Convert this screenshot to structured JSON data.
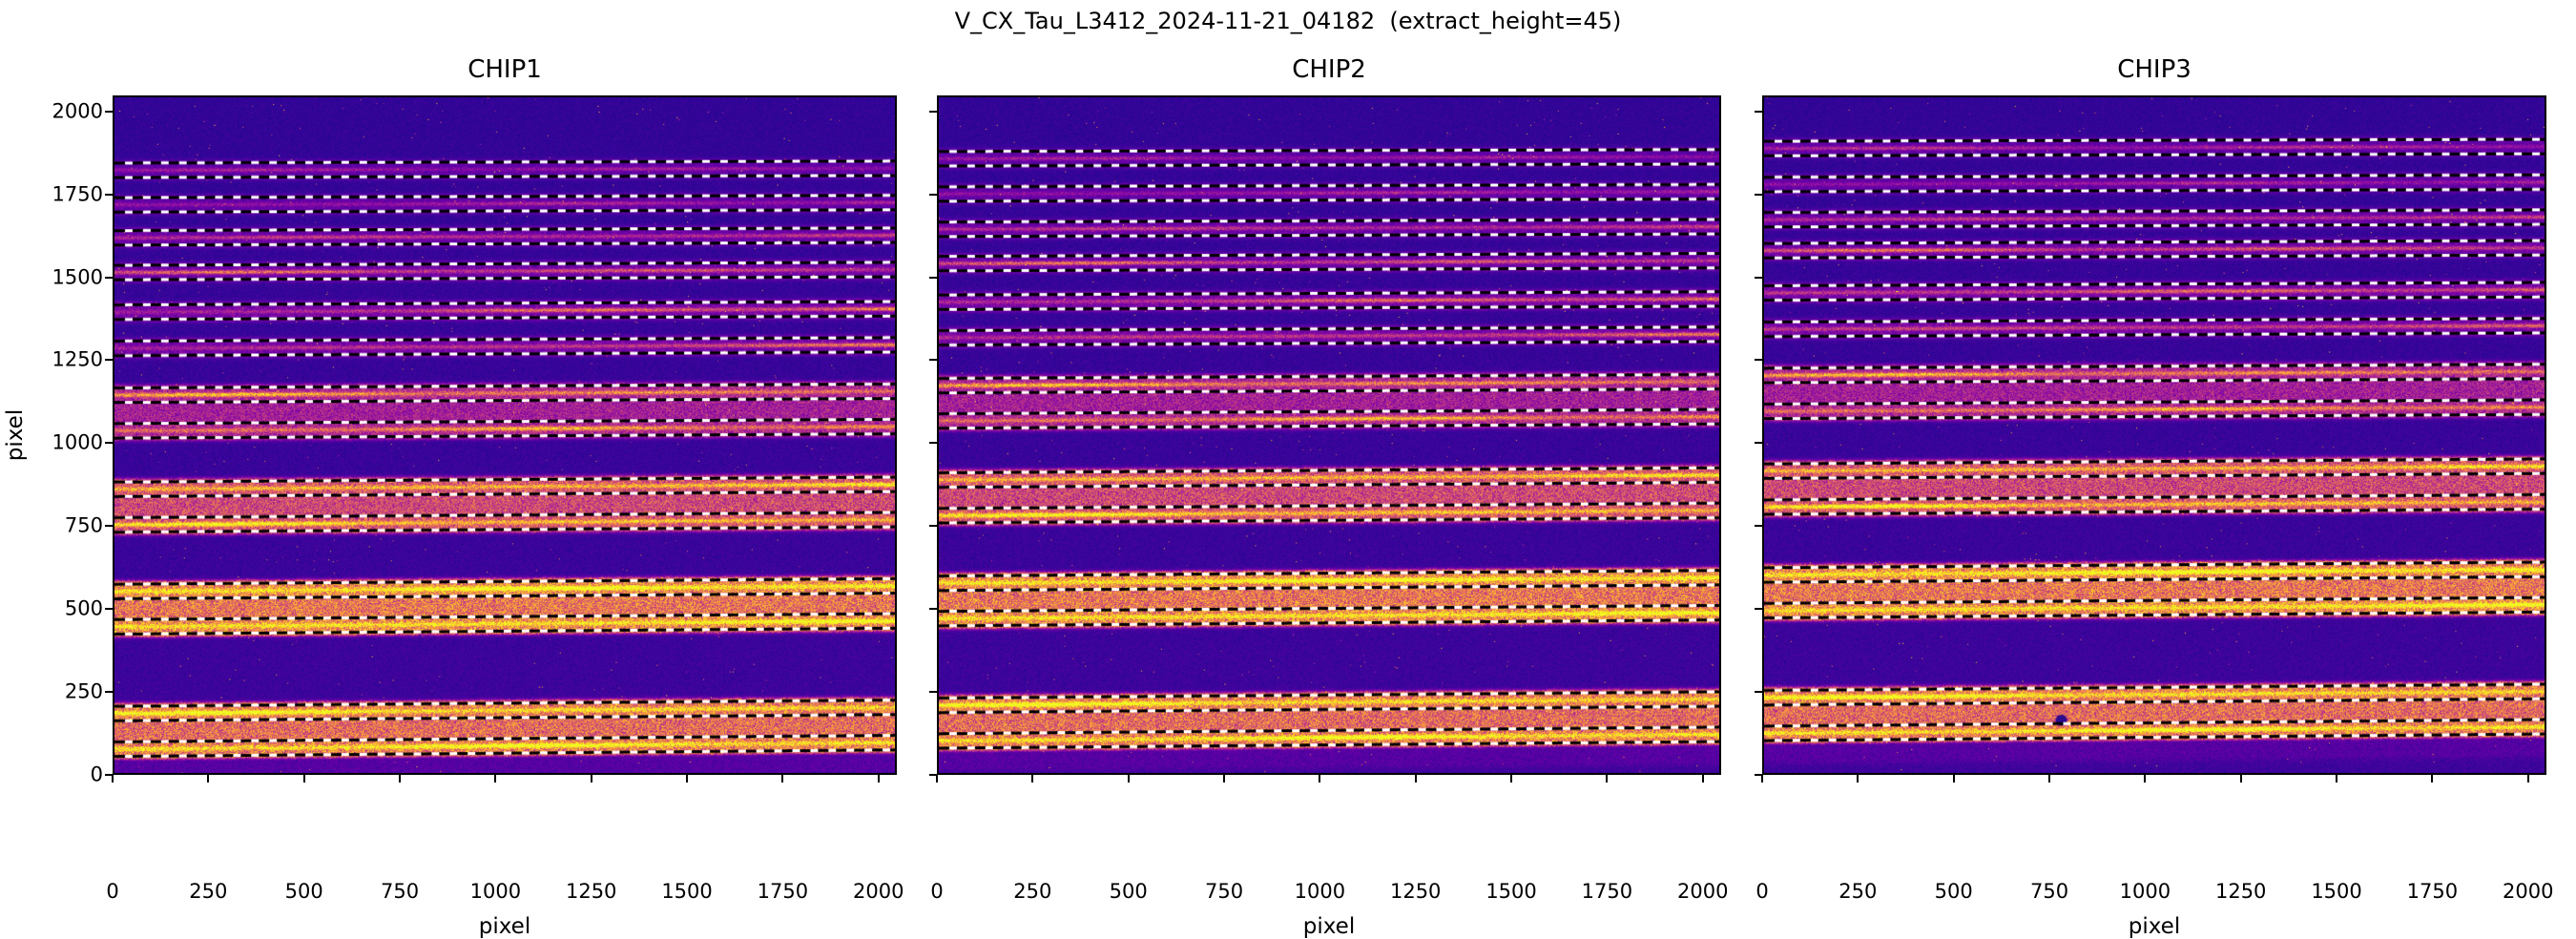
{
  "chart_data": {
    "type": "heatmap",
    "suptitle": "V_CX_Tau_L3412_2024-11-21_04182  (extract_height=45)",
    "xlabel": "pixel",
    "ylabel": "pixel",
    "xlim": [
      0,
      2048
    ],
    "ylim": [
      0,
      2048
    ],
    "xticks": [
      0,
      250,
      500,
      750,
      1000,
      1250,
      1500,
      1750,
      2000
    ],
    "yticks": [
      0,
      250,
      500,
      750,
      1000,
      1250,
      1500,
      1750,
      2000
    ],
    "colormap": "plasma",
    "extract_height": 45,
    "extraction_half_window": 22,
    "trace_line_style": "alternating black/white dashed lines at order trace ±22 px",
    "merged_order_pairs": [
      [
        6,
        7
      ],
      [
        8,
        9
      ],
      [
        10,
        11
      ],
      [
        12,
        13
      ]
    ],
    "panels": [
      {
        "title": "CHIP1",
        "show_ytick_labels": true,
        "defects": [],
        "orders": [
          {
            "trace": 1827,
            "core": 0.24,
            "window": 0.095,
            "tilt": 6,
            "xg": [
              1,
              1
            ]
          },
          {
            "trace": 1722,
            "core": 0.28,
            "window": 0.105,
            "tilt": 7,
            "xg": [
              1,
              1
            ]
          },
          {
            "trace": 1622,
            "core": 0.44,
            "window": 0.12,
            "tilt": 8,
            "xg": [
              1,
              1
            ]
          },
          {
            "trace": 1517,
            "core": 0.48,
            "window": 0.13,
            "tilt": 9,
            "xg": [
              1,
              1
            ]
          },
          {
            "trace": 1397,
            "core": 0.5,
            "window": 0.15,
            "tilt": 10,
            "xg": [
              0.5,
              1.35
            ]
          },
          {
            "trace": 1287,
            "core": 0.5,
            "window": 0.15,
            "tilt": 11,
            "xg": [
              0.55,
              1.3
            ]
          },
          {
            "trace": 1145,
            "core": 0.54,
            "window": 0.3,
            "tilt": 12,
            "xg": [
              1,
              1
            ]
          },
          {
            "trace": 1037,
            "core": 0.54,
            "window": 0.3,
            "tilt": 13,
            "xg": [
              1,
              1
            ]
          },
          {
            "trace": 860,
            "core": 0.63,
            "window": 0.46,
            "tilt": 15,
            "xg": [
              1,
              1
            ]
          },
          {
            "trace": 752,
            "core": 0.63,
            "window": 0.46,
            "tilt": 16,
            "xg": [
              1,
              1
            ]
          },
          {
            "trace": 550,
            "core": 0.72,
            "window": 0.61,
            "tilt": 17,
            "xg": [
              1,
              1
            ]
          },
          {
            "trace": 443,
            "core": 0.72,
            "window": 0.61,
            "tilt": 18,
            "xg": [
              1,
              1
            ]
          },
          {
            "trace": 180,
            "core": 0.69,
            "window": 0.57,
            "tilt": 19,
            "xg": [
              1,
              1
            ]
          },
          {
            "trace": 72,
            "core": 0.69,
            "window": 0.57,
            "tilt": 20,
            "xg": [
              1,
              1
            ]
          }
        ]
      },
      {
        "title": "CHIP2",
        "show_ytick_labels": false,
        "defects": [],
        "orders": [
          {
            "trace": 1862,
            "core": 0.24,
            "window": 0.095,
            "tilt": 6,
            "xg": [
              1,
              1
            ]
          },
          {
            "trace": 1755,
            "core": 0.28,
            "window": 0.105,
            "tilt": 7,
            "xg": [
              1,
              1
            ]
          },
          {
            "trace": 1648,
            "core": 0.44,
            "window": 0.12,
            "tilt": 8,
            "xg": [
              1,
              1
            ]
          },
          {
            "trace": 1544,
            "core": 0.48,
            "window": 0.13,
            "tilt": 9,
            "xg": [
              1,
              1
            ]
          },
          {
            "trace": 1427,
            "core": 0.5,
            "window": 0.15,
            "tilt": 10,
            "xg": [
              0.7,
              1.2
            ]
          },
          {
            "trace": 1319,
            "core": 0.5,
            "window": 0.15,
            "tilt": 11,
            "xg": [
              0.7,
              1.2
            ]
          },
          {
            "trace": 1174,
            "core": 0.54,
            "window": 0.3,
            "tilt": 12,
            "xg": [
              1,
              1
            ]
          },
          {
            "trace": 1067,
            "core": 0.54,
            "window": 0.3,
            "tilt": 13,
            "xg": [
              1,
              1
            ]
          },
          {
            "trace": 888,
            "core": 0.63,
            "window": 0.46,
            "tilt": 15,
            "xg": [
              1,
              1
            ]
          },
          {
            "trace": 780,
            "core": 0.63,
            "window": 0.46,
            "tilt": 16,
            "xg": [
              1,
              1
            ]
          },
          {
            "trace": 575,
            "core": 0.72,
            "window": 0.61,
            "tilt": 17,
            "xg": [
              1,
              1
            ]
          },
          {
            "trace": 468,
            "core": 0.72,
            "window": 0.61,
            "tilt": 18,
            "xg": [
              1,
              1
            ]
          },
          {
            "trace": 205,
            "core": 0.69,
            "window": 0.57,
            "tilt": 19,
            "xg": [
              1,
              1
            ]
          },
          {
            "trace": 97,
            "core": 0.69,
            "window": 0.57,
            "tilt": 20,
            "xg": [
              1,
              1
            ]
          }
        ]
      },
      {
        "title": "CHIP3",
        "show_ytick_labels": false,
        "defects": [
          {
            "x": 780,
            "y": 160,
            "r": 6
          }
        ],
        "orders": [
          {
            "trace": 1893,
            "core": 0.3,
            "window": 0.1,
            "tilt": 6,
            "xg": [
              1,
              1
            ]
          },
          {
            "trace": 1784,
            "core": 0.28,
            "window": 0.105,
            "tilt": 7,
            "xg": [
              1,
              1
            ]
          },
          {
            "trace": 1677,
            "core": 0.44,
            "window": 0.12,
            "tilt": 8,
            "xg": [
              1,
              1
            ]
          },
          {
            "trace": 1583,
            "core": 0.5,
            "window": 0.13,
            "tilt": 9,
            "xg": [
              1,
              1
            ]
          },
          {
            "trace": 1455,
            "core": 0.5,
            "window": 0.15,
            "tilt": 10,
            "xg": [
              1,
              1
            ]
          },
          {
            "trace": 1345,
            "core": 0.5,
            "window": 0.15,
            "tilt": 11,
            "xg": [
              1,
              1
            ]
          },
          {
            "trace": 1205,
            "core": 0.54,
            "window": 0.3,
            "tilt": 12,
            "xg": [
              1,
              1
            ]
          },
          {
            "trace": 1096,
            "core": 0.54,
            "window": 0.3,
            "tilt": 13,
            "xg": [
              1,
              1
            ]
          },
          {
            "trace": 915,
            "core": 0.63,
            "window": 0.46,
            "tilt": 15,
            "xg": [
              1,
              1
            ]
          },
          {
            "trace": 806,
            "core": 0.63,
            "window": 0.46,
            "tilt": 16,
            "xg": [
              1,
              1
            ]
          },
          {
            "trace": 600,
            "core": 0.72,
            "window": 0.61,
            "tilt": 17,
            "xg": [
              1,
              1
            ]
          },
          {
            "trace": 492,
            "core": 0.72,
            "window": 0.61,
            "tilt": 18,
            "xg": [
              1,
              1
            ]
          },
          {
            "trace": 228,
            "core": 0.69,
            "window": 0.57,
            "tilt": 19,
            "xg": [
              1,
              1
            ]
          },
          {
            "trace": 120,
            "core": 0.69,
            "window": 0.57,
            "tilt": 20,
            "xg": [
              1,
              1
            ]
          }
        ]
      }
    ]
  },
  "colors": {
    "figure_background": "#ffffff",
    "text": "#000000",
    "dash_black": "#000000",
    "dash_white": "#ffffff",
    "defect": "#2b0a8e",
    "plasma_stops": [
      [
        0.0,
        "#0d0887"
      ],
      [
        0.1,
        "#41049d"
      ],
      [
        0.2,
        "#6a00a8"
      ],
      [
        0.3,
        "#8f0da4"
      ],
      [
        0.4,
        "#b12a90"
      ],
      [
        0.5,
        "#cc4778"
      ],
      [
        0.6,
        "#e16462"
      ],
      [
        0.7,
        "#f2844b"
      ],
      [
        0.8,
        "#fca636"
      ],
      [
        0.9,
        "#fcce25"
      ],
      [
        1.0,
        "#f0f921"
      ]
    ]
  }
}
